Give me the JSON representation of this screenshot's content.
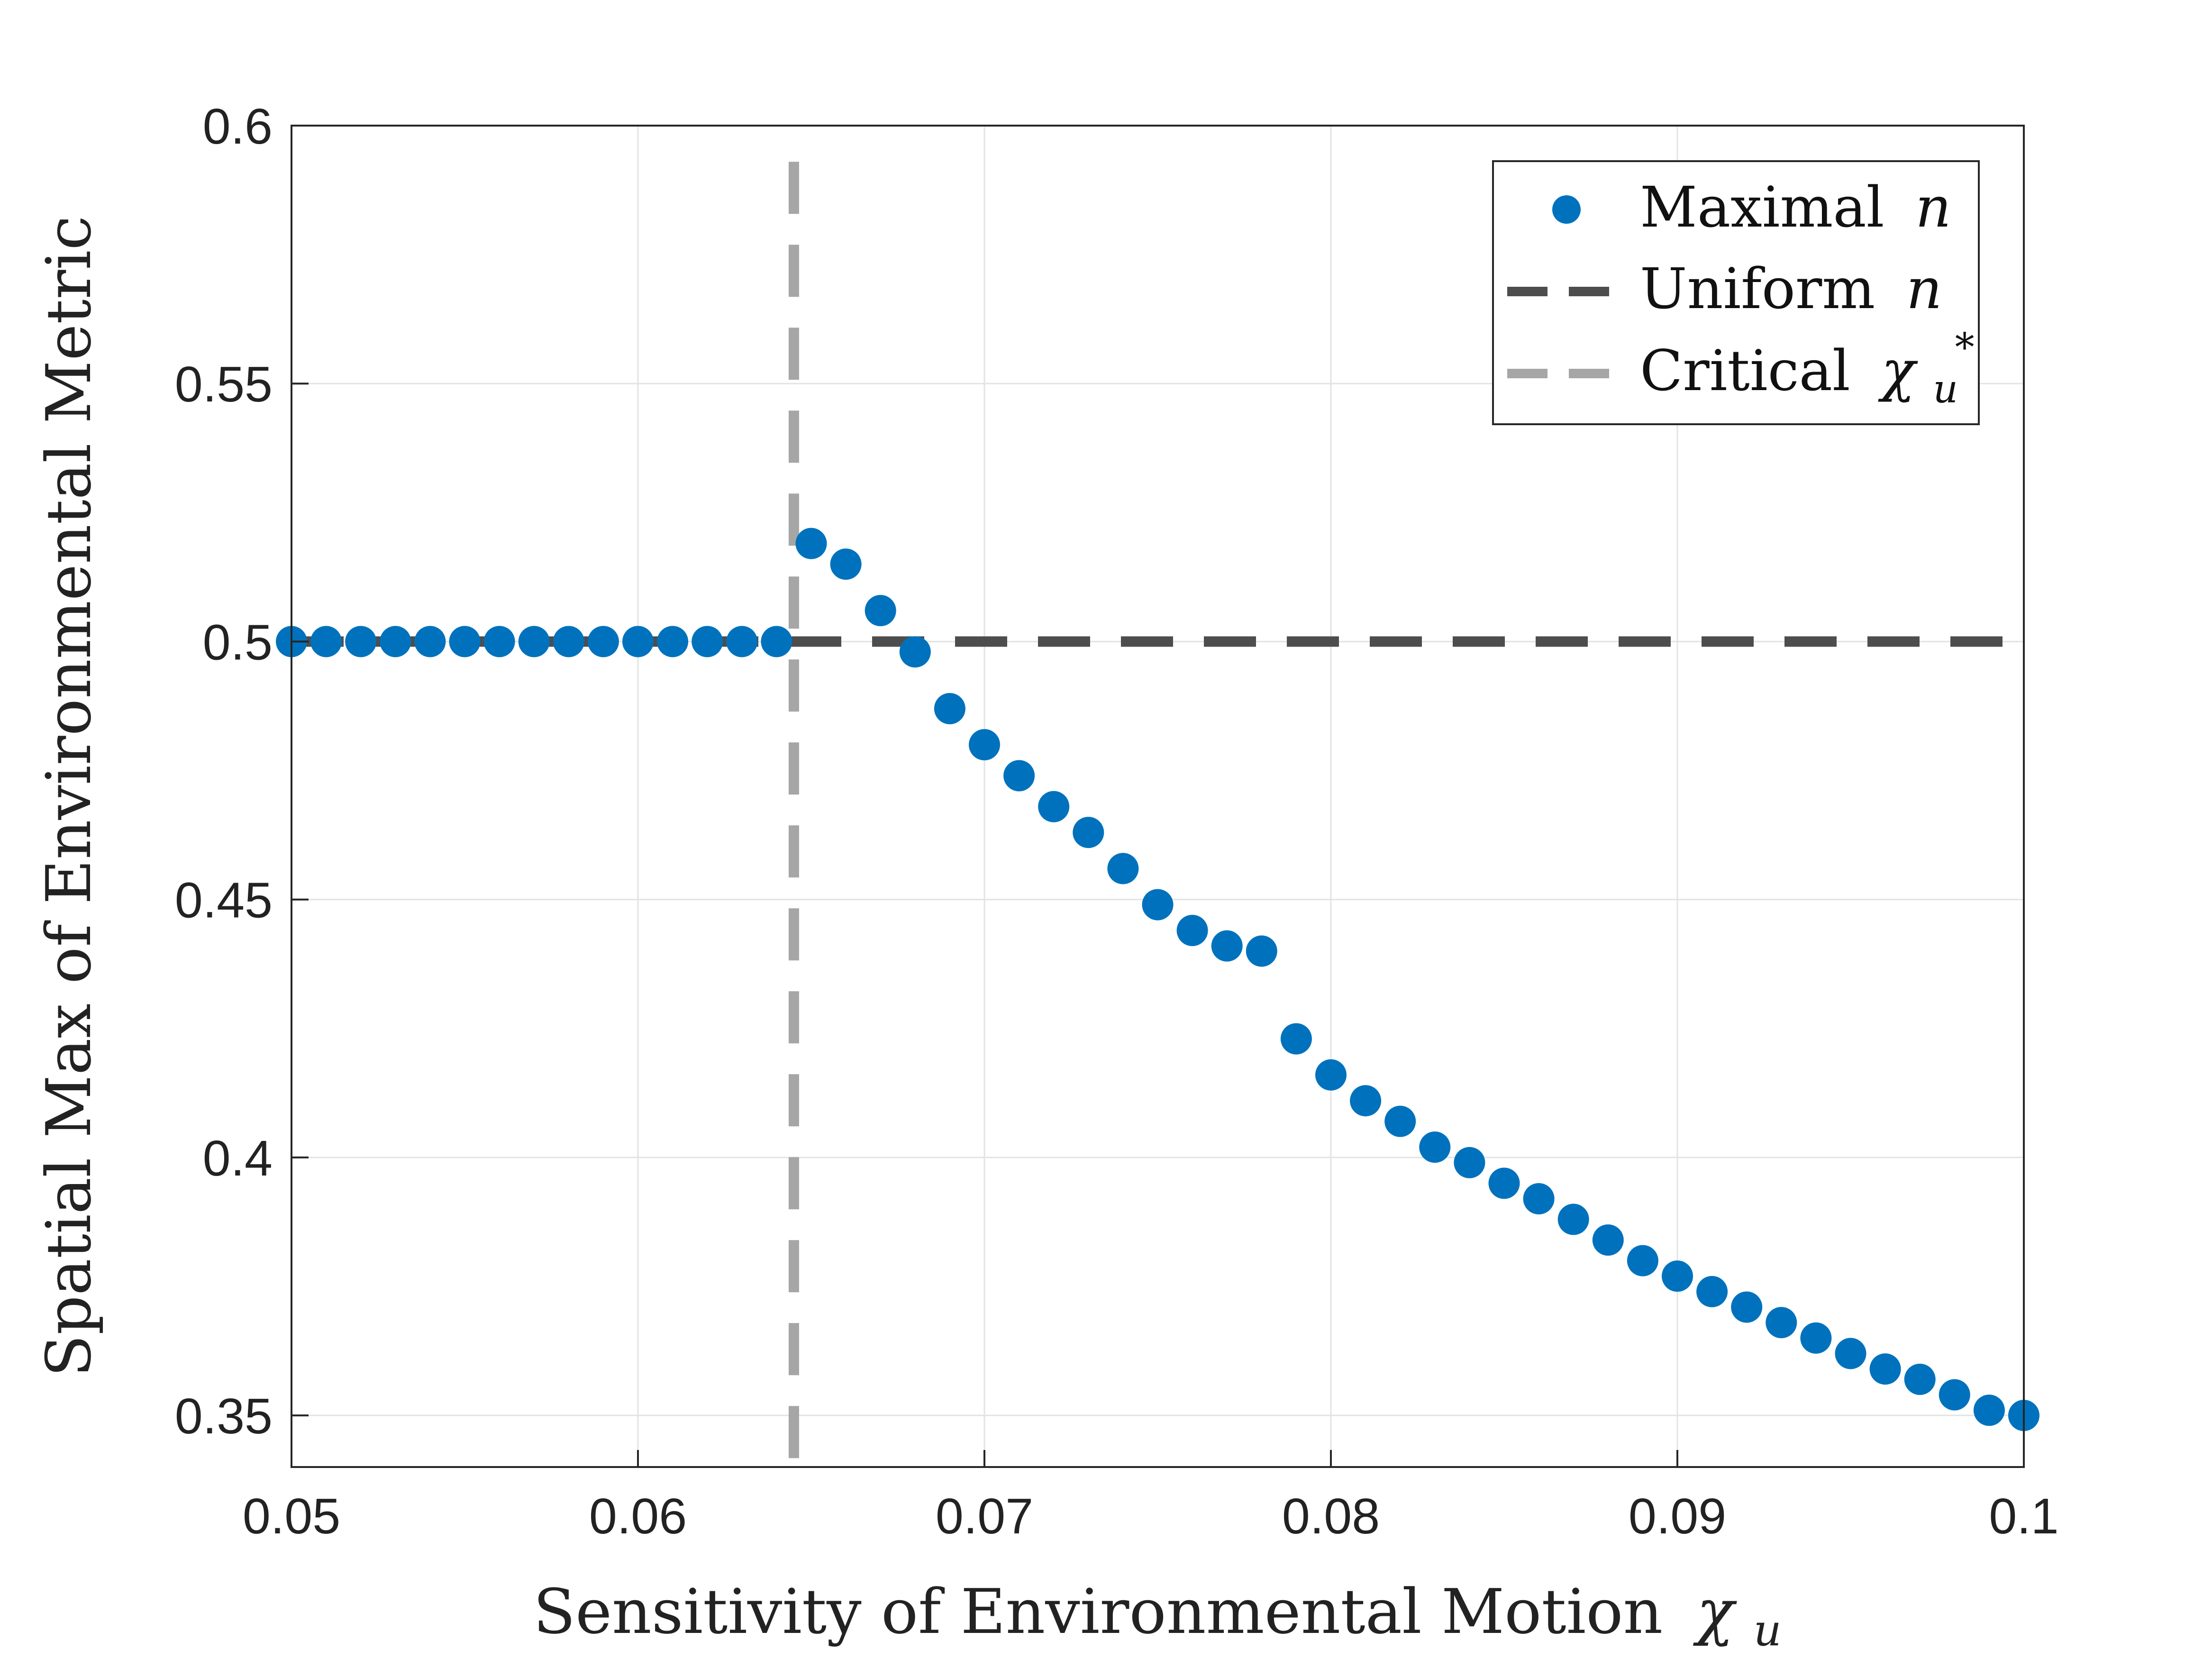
{
  "chart_data": {
    "type": "scatter",
    "title": "",
    "xlabel": "Sensitivity of Environmental Motion",
    "xlabel_symbol": "χ",
    "xlabel_subscript": "u",
    "ylabel": "Spatial Max of Environmental Metric",
    "xlim": [
      0.05,
      0.1
    ],
    "ylim": [
      0.34,
      0.6
    ],
    "grid": true,
    "x_ticks": [
      {
        "value": 0.05,
        "label": "0.05"
      },
      {
        "value": 0.06,
        "label": "0.06"
      },
      {
        "value": 0.07,
        "label": "0.07"
      },
      {
        "value": 0.08,
        "label": "0.08"
      },
      {
        "value": 0.09,
        "label": "0.09"
      },
      {
        "value": 0.1,
        "label": "0.1"
      }
    ],
    "y_ticks": [
      {
        "value": 0.35,
        "label": "0.35"
      },
      {
        "value": 0.4,
        "label": "0.4"
      },
      {
        "value": 0.45,
        "label": "0.45"
      },
      {
        "value": 0.5,
        "label": "0.5"
      },
      {
        "value": 0.55,
        "label": "0.55"
      },
      {
        "value": 0.6,
        "label": "0.6"
      }
    ],
    "legend_position": "top-right",
    "series": [
      {
        "name": "Maximal",
        "name_symbol": "n",
        "kind": "scatter",
        "color": "#0072BD",
        "x": [
          0.05,
          0.051,
          0.052,
          0.053,
          0.054,
          0.055,
          0.056,
          0.057,
          0.058,
          0.059,
          0.06,
          0.061,
          0.062,
          0.063,
          0.064,
          0.065,
          0.066,
          0.067,
          0.068,
          0.069,
          0.07,
          0.071,
          0.072,
          0.073,
          0.074,
          0.075,
          0.076,
          0.077,
          0.078,
          0.079,
          0.08,
          0.081,
          0.082,
          0.083,
          0.084,
          0.085,
          0.086,
          0.087,
          0.088,
          0.089,
          0.09,
          0.091,
          0.092,
          0.093,
          0.094,
          0.095,
          0.096,
          0.097,
          0.098,
          0.099,
          0.1
        ],
        "y": [
          0.5,
          0.5,
          0.5,
          0.5,
          0.5,
          0.5,
          0.5,
          0.5,
          0.5,
          0.5,
          0.5,
          0.5,
          0.5,
          0.5,
          0.5,
          0.519,
          0.515,
          0.506,
          0.498,
          0.487,
          0.48,
          0.474,
          0.468,
          0.463,
          0.456,
          0.449,
          0.444,
          0.441,
          0.44,
          0.423,
          0.416,
          0.411,
          0.407,
          0.402,
          0.399,
          0.395,
          0.392,
          0.388,
          0.384,
          0.38,
          0.377,
          0.374,
          0.371,
          0.368,
          0.365,
          0.362,
          0.359,
          0.357,
          0.354,
          0.351,
          0.35
        ]
      },
      {
        "name": "Uniform",
        "name_symbol": "n",
        "kind": "hline",
        "color": "#4D4D4D",
        "y": 0.5
      },
      {
        "name": "Critical",
        "name_symbol": "χ",
        "name_subscript": "u",
        "name_superscript": "*",
        "kind": "vline",
        "color": "#A6A6A6",
        "x": 0.0645
      }
    ]
  }
}
